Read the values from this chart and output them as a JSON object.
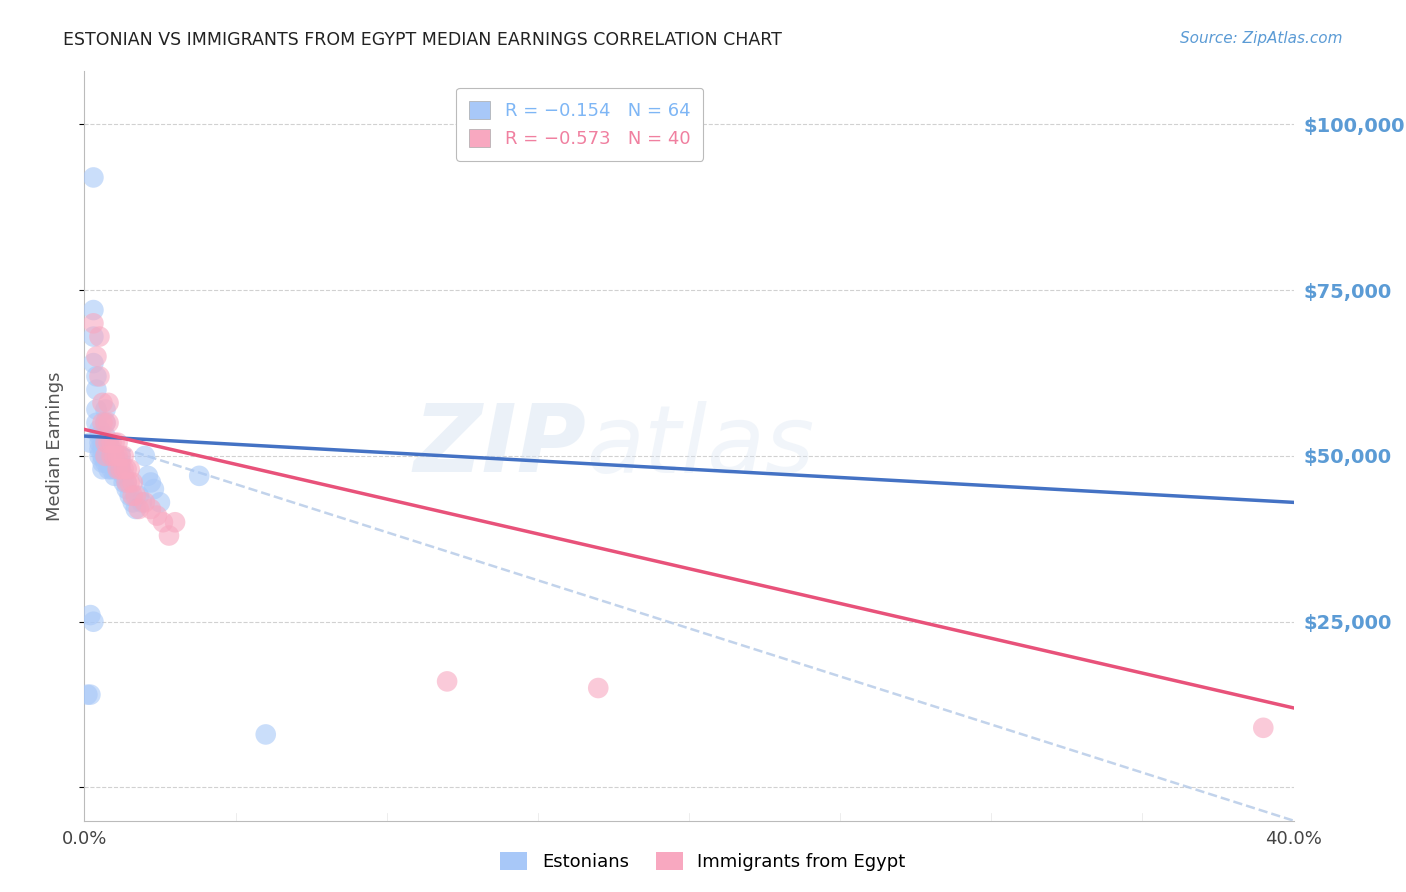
{
  "title": "ESTONIAN VS IMMIGRANTS FROM EGYPT MEDIAN EARNINGS CORRELATION CHART",
  "source": "Source: ZipAtlas.com",
  "ylabel": "Median Earnings",
  "y_ticks": [
    0,
    25000,
    50000,
    75000,
    100000
  ],
  "y_tick_labels": [
    "",
    "$25,000",
    "$50,000",
    "$75,000",
    "$100,000"
  ],
  "x_min": 0.0,
  "x_max": 0.4,
  "y_min": -5000,
  "y_max": 108000,
  "watermark_zip": "ZIP",
  "watermark_atlas": "atlas",
  "legend_items": [
    {
      "label": "R = −0.154   N = 64",
      "color": "#7EB6F5"
    },
    {
      "label": "R = −0.573   N = 40",
      "color": "#F080A0"
    }
  ],
  "estonians_label": "Estonians",
  "egypt_label": "Immigrants from Egypt",
  "scatter_color_blue": "#A8C8F8",
  "scatter_color_pink": "#F8A8C0",
  "line_color_blue": "#4472C4",
  "line_color_pink": "#E8527A",
  "line_color_dashed": "#B8CCE8",
  "background_color": "#FFFFFF",
  "title_color": "#222222",
  "axis_label_color": "#555555",
  "ytick_color": "#5B9BD5",
  "xtick_color": "#444444",
  "grid_color": "#CCCCCC",
  "estonians_x": [
    0.001,
    0.002,
    0.002,
    0.003,
    0.003,
    0.003,
    0.003,
    0.004,
    0.004,
    0.004,
    0.004,
    0.005,
    0.005,
    0.005,
    0.005,
    0.005,
    0.006,
    0.006,
    0.006,
    0.006,
    0.006,
    0.007,
    0.007,
    0.007,
    0.007,
    0.007,
    0.007,
    0.007,
    0.008,
    0.008,
    0.008,
    0.008,
    0.008,
    0.009,
    0.009,
    0.009,
    0.009,
    0.01,
    0.01,
    0.01,
    0.01,
    0.011,
    0.011,
    0.012,
    0.012,
    0.012,
    0.013,
    0.013,
    0.014,
    0.014,
    0.015,
    0.016,
    0.017,
    0.018,
    0.019,
    0.02,
    0.021,
    0.022,
    0.023,
    0.025,
    0.002,
    0.003,
    0.06,
    0.038
  ],
  "estonians_y": [
    14000,
    14000,
    52000,
    92000,
    72000,
    68000,
    64000,
    62000,
    60000,
    57000,
    55000,
    54000,
    53000,
    52000,
    51000,
    50000,
    52000,
    51000,
    50000,
    49000,
    48000,
    57000,
    55000,
    53000,
    52000,
    51000,
    50000,
    49000,
    52000,
    51000,
    50000,
    49000,
    48000,
    51000,
    50000,
    49000,
    48000,
    50000,
    49000,
    48000,
    47000,
    49000,
    48000,
    50000,
    49000,
    48000,
    47000,
    46000,
    46000,
    45000,
    44000,
    43000,
    42000,
    44000,
    43000,
    50000,
    47000,
    46000,
    45000,
    43000,
    26000,
    25000,
    8000,
    47000
  ],
  "egypt_x": [
    0.003,
    0.004,
    0.005,
    0.005,
    0.006,
    0.006,
    0.007,
    0.007,
    0.007,
    0.008,
    0.008,
    0.008,
    0.009,
    0.009,
    0.01,
    0.01,
    0.011,
    0.011,
    0.011,
    0.012,
    0.012,
    0.013,
    0.013,
    0.014,
    0.014,
    0.015,
    0.015,
    0.016,
    0.016,
    0.017,
    0.018,
    0.02,
    0.022,
    0.024,
    0.026,
    0.028,
    0.03,
    0.12,
    0.17,
    0.39
  ],
  "egypt_y": [
    70000,
    65000,
    68000,
    62000,
    58000,
    55000,
    55000,
    52000,
    50000,
    58000,
    55000,
    52000,
    52000,
    50000,
    52000,
    50000,
    52000,
    50000,
    48000,
    50000,
    48000,
    50000,
    48000,
    48000,
    46000,
    48000,
    46000,
    46000,
    44000,
    44000,
    42000,
    43000,
    42000,
    41000,
    40000,
    38000,
    40000,
    16000,
    15000,
    9000
  ],
  "blue_line_x": [
    0.0,
    0.4
  ],
  "blue_line_y": [
    53000,
    43000
  ],
  "pink_line_x": [
    0.0,
    0.4
  ],
  "pink_line_y": [
    54000,
    12000
  ],
  "dashed_line_x": [
    0.0,
    0.4
  ],
  "dashed_line_y": [
    53000,
    -5000
  ]
}
